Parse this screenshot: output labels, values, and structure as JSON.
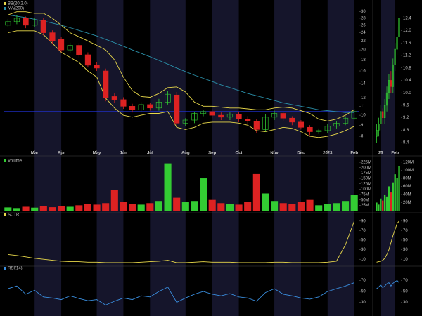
{
  "chart_data": [
    {
      "type": "candlestick",
      "log": true,
      "open": [
        26,
        27,
        28,
        26,
        27.5,
        24,
        22.5,
        20,
        21,
        19,
        17,
        16,
        12.2,
        11.8,
        11,
        10.6,
        11.2,
        10.8,
        11.5,
        12.4,
        9.2,
        9.5,
        10.2,
        10.4,
        10,
        9.8,
        10.1,
        9.6,
        9.4,
        8.6,
        9.8,
        10.2,
        9.7,
        9.3,
        8.8,
        8.4,
        8.5,
        8.9,
        9.2,
        9.7
      ],
      "high": [
        27.8,
        28.9,
        28.5,
        28.2,
        28,
        24.6,
        23,
        21.6,
        21.5,
        19.5,
        17.6,
        16.4,
        12.6,
        12.1,
        11.3,
        11.5,
        11.4,
        11.9,
        12.9,
        12.8,
        9.7,
        10.4,
        10.6,
        10.7,
        10.3,
        10.3,
        10.4,
        9.9,
        9.6,
        10.1,
        10.5,
        10.4,
        9.9,
        9.5,
        9.0,
        8.7,
        9.1,
        9.4,
        9.9,
        10.7
      ],
      "low": [
        25.4,
        26.3,
        25.2,
        25.5,
        23.3,
        21.4,
        19.5,
        19.4,
        18.5,
        16.6,
        16,
        11.6,
        11.4,
        10.7,
        10.3,
        10.3,
        10.5,
        10.5,
        11.2,
        8.9,
        8.9,
        9.2,
        9.9,
        9.7,
        9.5,
        9.5,
        9.3,
        9.1,
        8.3,
        8.4,
        9.5,
        9.4,
        9.0,
        8.6,
        8.1,
        8.2,
        8.3,
        8.7,
        9.0,
        9.5
      ],
      "close": [
        27,
        28,
        26,
        27.5,
        24,
        22,
        20,
        21,
        19,
        17,
        16.5,
        12,
        11.8,
        11,
        10.6,
        11.2,
        10.8,
        11.5,
        12.5,
        9.2,
        9.5,
        10.2,
        10.4,
        10.0,
        9.8,
        10.1,
        9.6,
        9.4,
        8.6,
        9.8,
        10.2,
        9.7,
        9.3,
        8.8,
        8.4,
        8.5,
        8.9,
        9.2,
        9.7,
        10.4
      ],
      "up_color": "#33cc33",
      "down_color": "#dd2222",
      "series": [
        {
          "name": "BB(20,2.0)",
          "color": "#e8d84a",
          "values": [
            29,
            30,
            30,
            29.5,
            29.5,
            28,
            26,
            24,
            23,
            22,
            21,
            20,
            18,
            15,
            13,
            12.2,
            12.1,
            12.6,
            13.4,
            13.5,
            12.8,
            11.5,
            11,
            11,
            10.9,
            10.8,
            10.8,
            10.7,
            10.6,
            10.6,
            10.8,
            10.9,
            10.8,
            10.5,
            10.2,
            9.6,
            9.4,
            9.6,
            10,
            10.6
          ]
        },
        {
          "name": "BB(20,2.0)",
          "color": "#e8d84a",
          "values": [
            24,
            24.5,
            24.5,
            24.5,
            23.5,
            21.5,
            19.5,
            18.5,
            17.5,
            16,
            15,
            12,
            10.8,
            10,
            9.8,
            10,
            10.2,
            10.2,
            10.4,
            8.8,
            8.6,
            8.8,
            9.2,
            9.3,
            9.3,
            9.3,
            9.2,
            9.0,
            8.5,
            8.4,
            8.6,
            8.8,
            8.7,
            8.4,
            8.0,
            7.9,
            8.0,
            8.2,
            8.5,
            8.9
          ]
        },
        {
          "name": "MA(200)",
          "color": "#2a8fa8",
          "values": [
            29,
            28.6,
            28.2,
            27.7,
            27.2,
            26.6,
            26,
            25.3,
            24.6,
            23.9,
            23.2,
            22.4,
            21.6,
            20.8,
            20,
            19.3,
            18.6,
            17.9,
            17.2,
            16.5,
            15.9,
            15.3,
            14.8,
            14.3,
            13.8,
            13.4,
            13,
            12.6,
            12.3,
            12,
            11.7,
            11.4,
            11.2,
            11,
            10.8,
            10.6,
            10.5,
            10.4,
            10.3,
            10.3
          ]
        }
      ],
      "hline": {
        "value": 10.4,
        "color": "#2233dd"
      },
      "ylim": [
        7,
        32
      ],
      "yticks": [
        8,
        9,
        10,
        11,
        12,
        14,
        16,
        18,
        20,
        22,
        24,
        26,
        28,
        30
      ],
      "xticks": [
        {
          "value": 3,
          "label": "Mar"
        },
        {
          "value": 6,
          "label": "Apr"
        },
        {
          "value": 10,
          "label": "May"
        },
        {
          "value": 13,
          "label": "Jun"
        },
        {
          "value": 16,
          "label": "Jul"
        },
        {
          "value": 20,
          "label": "Aug"
        },
        {
          "value": 23,
          "label": "Sep"
        },
        {
          "value": 26,
          "label": "Oct"
        },
        {
          "value": 30,
          "label": "Nov"
        },
        {
          "value": 33,
          "label": "Dec"
        },
        {
          "value": 36,
          "label": "2023"
        },
        {
          "value": 39,
          "label": "Feb"
        }
      ]
    },
    {
      "type": "bar",
      "name": "Volume",
      "values": [
        15000000,
        12000000,
        18000000,
        14000000,
        20000000,
        16000000,
        22000000,
        18000000,
        25000000,
        30000000,
        28000000,
        35000000,
        95000000,
        40000000,
        30000000,
        28000000,
        35000000,
        45000000,
        220000000,
        60000000,
        40000000,
        45000000,
        150000000,
        50000000,
        35000000,
        30000000,
        28000000,
        40000000,
        170000000,
        80000000,
        45000000,
        35000000,
        30000000,
        40000000,
        50000000,
        25000000,
        30000000,
        35000000,
        45000000,
        75000000
      ],
      "ylim": [
        0,
        235000000
      ],
      "yticks": [
        {
          "value": 25000000,
          "label": "25M"
        },
        {
          "value": 50000000,
          "label": "50M"
        },
        {
          "value": 75000000,
          "label": "75M"
        },
        {
          "value": 100000000,
          "label": "100M"
        },
        {
          "value": 125000000,
          "label": "125M"
        },
        {
          "value": 150000000,
          "label": "150M"
        },
        {
          "value": 175000000,
          "label": "175M"
        },
        {
          "value": 200000000,
          "label": "200M"
        },
        {
          "value": 225000000,
          "label": "225M"
        }
      ]
    },
    {
      "type": "line",
      "series": [
        {
          "name": "SCTR",
          "color": "#e8d84a",
          "values": [
            20,
            18,
            15,
            12,
            10,
            8,
            6,
            5,
            5,
            4,
            4,
            3,
            3,
            3,
            3,
            4,
            5,
            6,
            8,
            3,
            3,
            4,
            5,
            4,
            4,
            4,
            3,
            3,
            3,
            3,
            4,
            4,
            3,
            3,
            3,
            3,
            4,
            6,
            40,
            90
          ]
        }
      ],
      "ylim": [
        0,
        100
      ],
      "yticks": [
        10,
        30,
        50,
        70,
        90
      ]
    },
    {
      "type": "line",
      "series": [
        {
          "name": "RSI(14)",
          "color": "#3a8fe0",
          "values": [
            55,
            60,
            45,
            52,
            40,
            38,
            35,
            42,
            37,
            33,
            35,
            25,
            32,
            38,
            35,
            42,
            40,
            50,
            58,
            30,
            38,
            45,
            50,
            45,
            42,
            46,
            40,
            38,
            32,
            48,
            55,
            45,
            42,
            38,
            36,
            40,
            50,
            55,
            60,
            66
          ]
        }
      ],
      "ylim": [
        10,
        90
      ],
      "yticks": [
        30,
        50,
        70
      ]
    },
    {
      "type": "candlestick",
      "log": false,
      "open": [
        8.6,
        8.8,
        9.0,
        9.4,
        9.2,
        9.6,
        10.0,
        10.4,
        10.2,
        10.9,
        11.4,
        11.8
      ],
      "high": [
        9.0,
        9.2,
        9.6,
        9.5,
        9.8,
        10.2,
        10.6,
        10.7,
        11.1,
        11.6,
        12.1,
        12.7
      ],
      "low": [
        8.4,
        8.6,
        8.8,
        9.0,
        9.0,
        9.4,
        9.8,
        10.0,
        10.0,
        10.7,
        11.2,
        11.6
      ],
      "close": [
        8.8,
        9.0,
        9.4,
        9.2,
        9.6,
        10.0,
        10.4,
        10.2,
        10.9,
        11.4,
        11.8,
        12.4
      ],
      "up_color": "#33cc33",
      "down_color": "#dd2222",
      "ylim": [
        8.2,
        12.8
      ],
      "yticks": [
        8.4,
        8.8,
        9.2,
        9.6,
        {
          "value": 10,
          "label": "10.0"
        },
        10.4,
        10.8,
        11.2,
        11.6,
        {
          "value": 12,
          "label": "12.0"
        },
        12.4
      ],
      "xticks": [
        {
          "value": 2,
          "label": "23"
        },
        {
          "value": 9,
          "label": "Feb"
        }
      ]
    },
    {
      "type": "bar",
      "values": [
        20000000,
        15000000,
        30000000,
        25000000,
        40000000,
        35000000,
        60000000,
        45000000,
        70000000,
        90000000,
        80000000,
        110000000
      ],
      "ylim": [
        0,
        125000000
      ],
      "yticks": [
        {
          "value": 20000000,
          "label": "20M"
        },
        {
          "value": 40000000,
          "label": "40M"
        },
        {
          "value": 60000000,
          "label": "60M"
        },
        {
          "value": 80000000,
          "label": "80M"
        },
        {
          "value": 100000000,
          "label": "100M"
        },
        {
          "value": 120000000,
          "label": "120M"
        }
      ]
    },
    {
      "type": "line",
      "series": [
        {
          "color": "#e8d84a",
          "values": [
            4,
            5,
            6,
            8,
            12,
            20,
            30,
            45,
            60,
            72,
            85,
            90
          ]
        }
      ],
      "ylim": [
        0,
        100
      ],
      "yticks": [
        10,
        30,
        50,
        70,
        90
      ]
    },
    {
      "type": "line",
      "series": [
        {
          "color": "#3a8fe0",
          "values": [
            55,
            58,
            62,
            57,
            60,
            64,
            66,
            60,
            65,
            68,
            70,
            66
          ]
        }
      ],
      "ylim": [
        10,
        90
      ],
      "yticks": [
        30,
        50,
        70
      ]
    }
  ]
}
